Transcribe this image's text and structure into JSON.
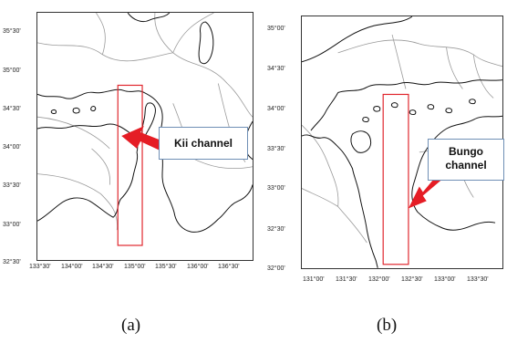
{
  "panel_a": {
    "caption": "(a)",
    "callout_label": "Kii channel",
    "lat_ticks": [
      "35°30'",
      "35°00'",
      "34°30'",
      "34°00'",
      "33°30'",
      "33°00'",
      "32°30'"
    ],
    "lon_ticks": [
      "133°30'",
      "134°00'",
      "134°30'",
      "135°00'",
      "135°30'",
      "136°00'",
      "136°30'"
    ]
  },
  "panel_b": {
    "caption": "(b)",
    "callout_line1": "Bungo",
    "callout_line2": "channel",
    "lat_ticks": [
      "35°00'",
      "34°30'",
      "34°00'",
      "33°30'",
      "33°00'",
      "32°30'",
      "32°00'"
    ],
    "lon_ticks": [
      "131°00'",
      "131°30'",
      "132°00'",
      "132°30'",
      "133°00'",
      "133°30'"
    ]
  },
  "colors": {
    "coast": "#111111",
    "border": "#9a9a9a",
    "rect": "#e0262d",
    "arrow": "#e51d25",
    "callout_border": "#6f8fb5"
  }
}
